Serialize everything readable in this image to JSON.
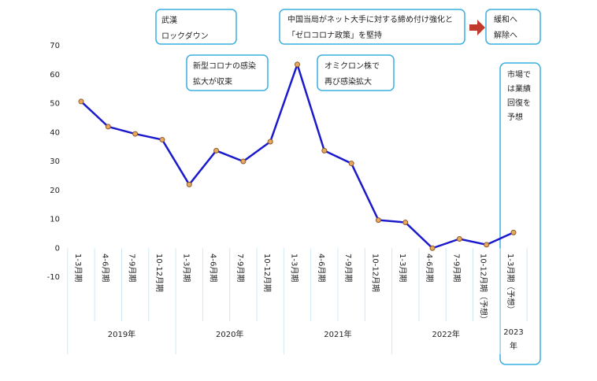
{
  "chart_data": {
    "type": "line",
    "categories": [
      "1-3月期",
      "4-6月期",
      "7-9月期",
      "10-12月期",
      "1-3月期",
      "4-6月期",
      "7-9月期",
      "10-12月期",
      "1-3月期",
      "4-6月期",
      "7-9月期",
      "10-12月期",
      "1-3月期",
      "4-6月期",
      "7-9月期",
      "10-12月期（予想）",
      "1-3月期（予想）"
    ],
    "years": [
      "2019年",
      "2020年",
      "2021年",
      "2022年",
      [
        "2023",
        "年"
      ]
    ],
    "series": [
      {
        "color": "#1a1acc",
        "values": [
          50.7,
          42,
          39.5,
          37.5,
          22,
          33.7,
          30,
          36.8,
          63.5,
          33.7,
          29.3,
          9.7,
          8.9,
          0,
          3.2,
          1.2,
          5.4
        ]
      }
    ],
    "ylim": [
      -10,
      70
    ],
    "yticks": [
      -10,
      0,
      10,
      20,
      30,
      40,
      50,
      60,
      70
    ],
    "annotations": [
      [
        "武漢",
        "ロックダウン"
      ],
      [
        "新型コロナの感染",
        "拡大が収束"
      ],
      [
        "中国当局がネット大手に対する締め付け強化と",
        "「ゼロコロナ政策」を堅持"
      ],
      [
        "オミクロン株で",
        "再び感染拡大"
      ],
      [
        "緩和へ",
        "解除へ"
      ],
      [
        "市場で",
        "は業績",
        "回復を",
        "予想"
      ]
    ]
  }
}
